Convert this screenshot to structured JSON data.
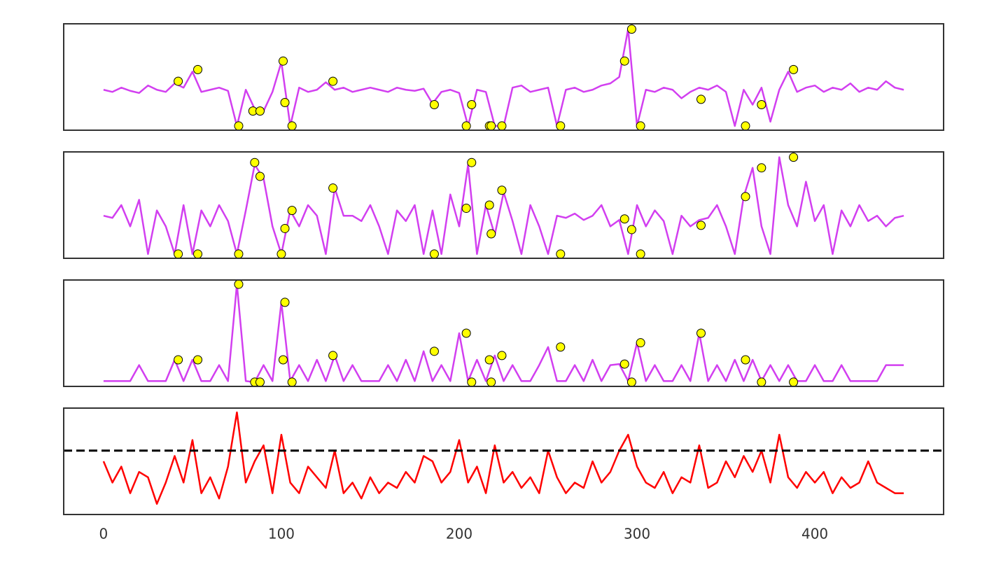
{
  "chart_data": [
    {
      "type": "line",
      "xlim": [
        -22.4,
        472.4
      ],
      "ylim": [
        0,
        1
      ],
      "x": [
        0,
        5,
        10,
        15,
        20,
        25,
        30,
        35,
        40,
        45,
        50,
        55,
        60,
        65,
        70,
        75,
        80,
        85,
        90,
        95,
        100,
        105,
        110,
        115,
        120,
        125,
        130,
        135,
        140,
        145,
        150,
        155,
        160,
        165,
        170,
        175,
        180,
        185,
        190,
        195,
        200,
        205,
        210,
        215,
        220,
        225,
        230,
        235,
        240,
        245,
        250,
        255,
        260,
        265,
        270,
        275,
        280,
        285,
        290,
        295,
        300,
        305,
        310,
        315,
        320,
        325,
        330,
        335,
        340,
        345,
        350,
        355,
        360,
        365,
        370,
        375,
        380,
        385,
        390,
        395,
        400,
        405,
        410,
        415,
        420,
        425,
        430,
        435,
        440,
        445,
        450
      ],
      "series": [
        {
          "color": "#d23ff0",
          "values": [
            0.38,
            0.36,
            0.4,
            0.37,
            0.35,
            0.42,
            0.38,
            0.36,
            0.44,
            0.4,
            0.55,
            0.36,
            0.38,
            0.4,
            0.37,
            0.04,
            0.38,
            0.2,
            0.18,
            0.36,
            0.64,
            0.04,
            0.4,
            0.36,
            0.38,
            0.45,
            0.38,
            0.4,
            0.36,
            0.38,
            0.4,
            0.38,
            0.36,
            0.4,
            0.38,
            0.37,
            0.39,
            0.25,
            0.36,
            0.38,
            0.35,
            0.04,
            0.38,
            0.36,
            0.04,
            0.04,
            0.4,
            0.42,
            0.36,
            0.38,
            0.4,
            0.04,
            0.38,
            0.4,
            0.36,
            0.38,
            0.42,
            0.44,
            0.5,
            0.95,
            0.04,
            0.38,
            0.36,
            0.4,
            0.38,
            0.3,
            0.36,
            0.4,
            0.38,
            0.42,
            0.36,
            0.04,
            0.38,
            0.24,
            0.4,
            0.08,
            0.38,
            0.55,
            0.36,
            0.4,
            0.42,
            0.36,
            0.4,
            0.38,
            0.44,
            0.36,
            0.4,
            0.38,
            0.46,
            0.4,
            0.38
          ]
        }
      ],
      "points": {
        "color": "#ffff00",
        "x": [
          42,
          53,
          76,
          84,
          88,
          101,
          102,
          106,
          129,
          186,
          204,
          207,
          217,
          218,
          224,
          257,
          293,
          297,
          302,
          336,
          361,
          370,
          388
        ],
        "values": [
          0.46,
          0.57,
          0.04,
          0.18,
          0.18,
          0.65,
          0.26,
          0.04,
          0.46,
          0.24,
          0.04,
          0.24,
          0.04,
          0.04,
          0.04,
          0.04,
          0.65,
          0.95,
          0.04,
          0.29,
          0.04,
          0.24,
          0.57
        ]
      }
    },
    {
      "type": "line",
      "xlim": [
        -22.4,
        472.4
      ],
      "ylim": [
        0,
        1
      ],
      "x": [
        0,
        5,
        10,
        15,
        20,
        25,
        30,
        35,
        40,
        45,
        50,
        55,
        60,
        65,
        70,
        75,
        80,
        85,
        90,
        95,
        100,
        105,
        110,
        115,
        120,
        125,
        130,
        135,
        140,
        145,
        150,
        155,
        160,
        165,
        170,
        175,
        180,
        185,
        190,
        195,
        200,
        205,
        210,
        215,
        220,
        225,
        230,
        235,
        240,
        245,
        250,
        255,
        260,
        265,
        270,
        275,
        280,
        285,
        290,
        295,
        300,
        305,
        310,
        315,
        320,
        325,
        330,
        335,
        340,
        345,
        350,
        355,
        360,
        365,
        370,
        375,
        380,
        385,
        390,
        395,
        400,
        405,
        410,
        415,
        420,
        425,
        430,
        435,
        440,
        445,
        450
      ],
      "series": [
        {
          "color": "#d23ff0",
          "values": [
            0.4,
            0.38,
            0.5,
            0.3,
            0.55,
            0.04,
            0.45,
            0.3,
            0.04,
            0.5,
            0.04,
            0.45,
            0.3,
            0.5,
            0.35,
            0.04,
            0.45,
            0.88,
            0.75,
            0.3,
            0.04,
            0.45,
            0.3,
            0.5,
            0.4,
            0.04,
            0.66,
            0.4,
            0.4,
            0.35,
            0.5,
            0.3,
            0.04,
            0.45,
            0.35,
            0.5,
            0.04,
            0.45,
            0.04,
            0.6,
            0.3,
            0.88,
            0.04,
            0.5,
            0.22,
            0.62,
            0.35,
            0.04,
            0.5,
            0.3,
            0.04,
            0.4,
            0.38,
            0.42,
            0.36,
            0.4,
            0.5,
            0.3,
            0.36,
            0.04,
            0.5,
            0.3,
            0.45,
            0.35,
            0.04,
            0.4,
            0.3,
            0.36,
            0.38,
            0.5,
            0.3,
            0.04,
            0.58,
            0.85,
            0.3,
            0.04,
            0.95,
            0.5,
            0.3,
            0.72,
            0.35,
            0.5,
            0.04,
            0.45,
            0.3,
            0.5,
            0.35,
            0.4,
            0.3,
            0.38,
            0.4
          ]
        }
      ],
      "points": {
        "color": "#ffff00",
        "x": [
          42,
          53,
          76,
          85,
          88,
          100,
          102,
          106,
          129,
          186,
          204,
          207,
          217,
          218,
          224,
          257,
          293,
          297,
          302,
          336,
          361,
          370,
          388
        ],
        "values": [
          0.04,
          0.04,
          0.04,
          0.9,
          0.77,
          0.04,
          0.28,
          0.45,
          0.66,
          0.04,
          0.47,
          0.9,
          0.5,
          0.23,
          0.64,
          0.04,
          0.37,
          0.27,
          0.04,
          0.31,
          0.58,
          0.85,
          0.95
        ]
      }
    },
    {
      "type": "line",
      "xlim": [
        -22.4,
        472.4
      ],
      "ylim": [
        0,
        1
      ],
      "x": [
        0,
        5,
        10,
        15,
        20,
        25,
        30,
        35,
        40,
        45,
        50,
        55,
        60,
        65,
        70,
        75,
        80,
        85,
        90,
        95,
        100,
        105,
        110,
        115,
        120,
        125,
        130,
        135,
        140,
        145,
        150,
        155,
        160,
        165,
        170,
        175,
        180,
        185,
        190,
        195,
        200,
        205,
        210,
        215,
        220,
        225,
        230,
        235,
        240,
        245,
        250,
        255,
        260,
        265,
        270,
        275,
        280,
        285,
        290,
        295,
        300,
        305,
        310,
        315,
        320,
        325,
        330,
        335,
        340,
        345,
        350,
        355,
        360,
        365,
        370,
        375,
        380,
        385,
        390,
        395,
        400,
        405,
        410,
        415,
        420,
        425,
        430,
        435,
        440,
        445,
        450
      ],
      "series": [
        {
          "color": "#d23ff0",
          "values": [
            0.05,
            0.05,
            0.05,
            0.05,
            0.2,
            0.05,
            0.05,
            0.05,
            0.25,
            0.05,
            0.25,
            0.05,
            0.05,
            0.2,
            0.05,
            0.96,
            0.05,
            0.04,
            0.2,
            0.05,
            0.79,
            0.05,
            0.2,
            0.05,
            0.25,
            0.05,
            0.29,
            0.05,
            0.2,
            0.05,
            0.05,
            0.05,
            0.2,
            0.05,
            0.25,
            0.05,
            0.33,
            0.05,
            0.2,
            0.05,
            0.5,
            0.05,
            0.25,
            0.05,
            0.29,
            0.05,
            0.2,
            0.05,
            0.05,
            0.2,
            0.37,
            0.05,
            0.05,
            0.2,
            0.05,
            0.25,
            0.05,
            0.2,
            0.21,
            0.05,
            0.41,
            0.05,
            0.2,
            0.05,
            0.05,
            0.2,
            0.05,
            0.5,
            0.05,
            0.2,
            0.05,
            0.25,
            0.05,
            0.25,
            0.05,
            0.2,
            0.05,
            0.2,
            0.05,
            0.05,
            0.2,
            0.05,
            0.05,
            0.2,
            0.05,
            0.05,
            0.05,
            0.05,
            0.2,
            0.2,
            0.2
          ]
        }
      ],
      "points": {
        "color": "#ffff00",
        "x": [
          42,
          53,
          76,
          85,
          88,
          101,
          102,
          106,
          129,
          186,
          204,
          207,
          217,
          218,
          224,
          257,
          293,
          297,
          302,
          336,
          361,
          370,
          388
        ],
        "values": [
          0.25,
          0.25,
          0.96,
          0.04,
          0.04,
          0.25,
          0.79,
          0.04,
          0.29,
          0.33,
          0.5,
          0.04,
          0.25,
          0.04,
          0.29,
          0.37,
          0.21,
          0.04,
          0.41,
          0.5,
          0.25,
          0.04,
          0.04
        ]
      }
    },
    {
      "type": "line",
      "xlim": [
        -22.4,
        472.4
      ],
      "ylim": [
        0,
        1
      ],
      "xticks": [
        0,
        100,
        200,
        300,
        400
      ],
      "threshold": 0.6,
      "x": [
        0,
        5,
        10,
        15,
        20,
        25,
        30,
        35,
        40,
        45,
        50,
        55,
        60,
        65,
        70,
        75,
        80,
        85,
        90,
        95,
        100,
        105,
        110,
        115,
        120,
        125,
        130,
        135,
        140,
        145,
        150,
        155,
        160,
        165,
        170,
        175,
        180,
        185,
        190,
        195,
        200,
        205,
        210,
        215,
        220,
        225,
        230,
        235,
        240,
        245,
        250,
        255,
        260,
        265,
        270,
        275,
        280,
        285,
        290,
        295,
        300,
        305,
        310,
        315,
        320,
        325,
        330,
        335,
        340,
        345,
        350,
        355,
        360,
        365,
        370,
        375,
        380,
        385,
        390,
        395,
        400,
        405,
        410,
        415,
        420,
        425,
        430,
        435,
        440,
        445,
        450
      ],
      "series": [
        {
          "color": "#ff0000",
          "values": [
            0.5,
            0.3,
            0.45,
            0.2,
            0.4,
            0.35,
            0.1,
            0.3,
            0.55,
            0.3,
            0.7,
            0.2,
            0.35,
            0.15,
            0.45,
            0.96,
            0.3,
            0.5,
            0.65,
            0.2,
            0.75,
            0.3,
            0.2,
            0.45,
            0.35,
            0.25,
            0.6,
            0.2,
            0.3,
            0.15,
            0.35,
            0.2,
            0.3,
            0.25,
            0.4,
            0.3,
            0.55,
            0.5,
            0.3,
            0.4,
            0.7,
            0.3,
            0.45,
            0.2,
            0.65,
            0.3,
            0.4,
            0.25,
            0.35,
            0.2,
            0.6,
            0.35,
            0.2,
            0.3,
            0.25,
            0.5,
            0.3,
            0.4,
            0.6,
            0.75,
            0.45,
            0.3,
            0.25,
            0.4,
            0.2,
            0.35,
            0.3,
            0.65,
            0.25,
            0.3,
            0.5,
            0.35,
            0.55,
            0.4,
            0.6,
            0.3,
            0.75,
            0.35,
            0.25,
            0.4,
            0.3,
            0.4,
            0.2,
            0.35,
            0.25,
            0.3,
            0.5,
            0.3,
            0.25,
            0.2,
            0.2
          ]
        }
      ]
    }
  ]
}
